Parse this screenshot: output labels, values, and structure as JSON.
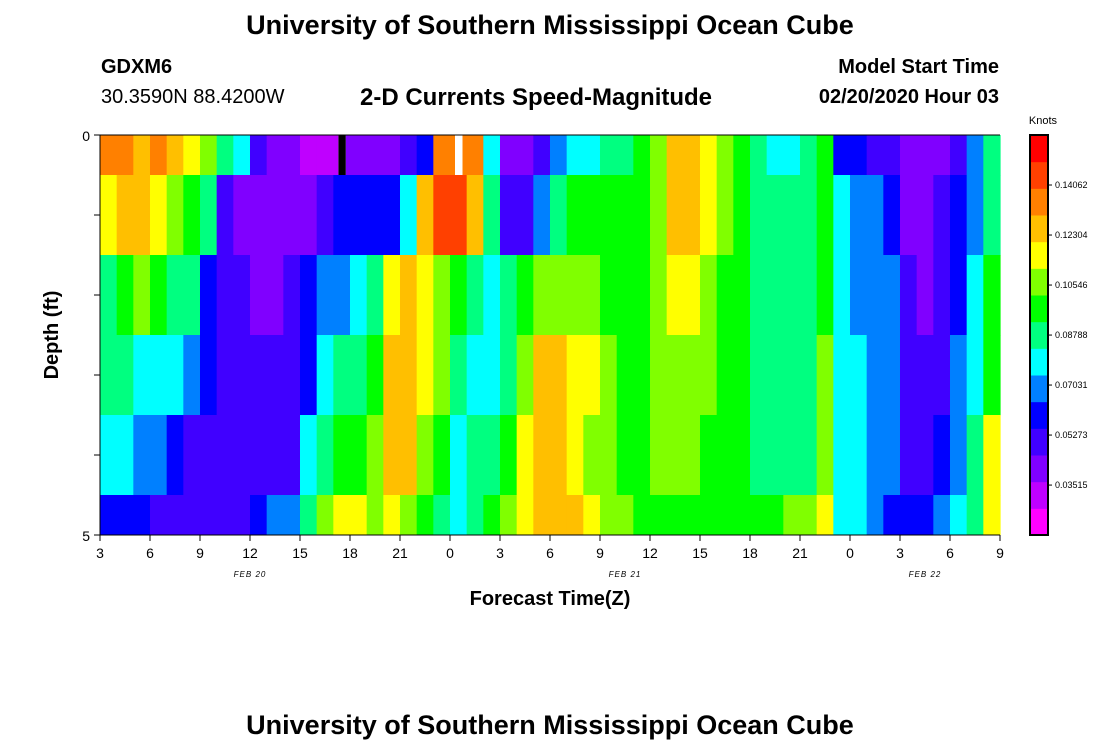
{
  "header": {
    "title": "University of Southern Mississippi Ocean Cube",
    "station_id": "GDXM6",
    "station_coords": "30.3590N 88.4200W",
    "subtitle": "2-D Currents Speed-Magnitude",
    "model_label": "Model Start Time",
    "model_time": "02/20/2020 Hour 03"
  },
  "footer": {
    "title": "University of Southern Mississippi Ocean Cube"
  },
  "colors": {
    "palette": [
      "#ff00ff",
      "#bf00ff",
      "#8000ff",
      "#4000ff",
      "#0000ff",
      "#0080ff",
      "#00ffff",
      "#00ff80",
      "#00ff00",
      "#80ff00",
      "#ffff00",
      "#ffbf00",
      "#ff8000",
      "#ff4000",
      "#ff0000"
    ],
    "missing_black": "#000000",
    "missing_white": "#ffffff"
  },
  "chart_data": {
    "type": "heatmap",
    "xlabel": "Forecast Time(Z)",
    "ylabel": "Depth (ft)",
    "colorbar_label": "Knots",
    "y_tick_labels": [
      "0",
      "5"
    ],
    "ylim": [
      0,
      5
    ],
    "x_tick_labels": [
      "3",
      "6",
      "9",
      "12",
      "15",
      "18",
      "21",
      "0",
      "3",
      "6",
      "9",
      "12",
      "15",
      "18",
      "21",
      "0",
      "3",
      "6",
      "9"
    ],
    "date_labels": [
      {
        "label": "FEB 20",
        "hour_index": 9
      },
      {
        "label": "FEB 21",
        "hour_index": 31.5
      },
      {
        "label": "FEB 22",
        "hour_index": 49.5
      }
    ],
    "colorbar_ticks": [
      "0.14062",
      "0.12304",
      "0.10546",
      "0.08788",
      "0.07031",
      "0.05273",
      "0.03515"
    ],
    "colorbar_range": [
      0.0176,
      0.1582
    ],
    "hours": 54,
    "depth_rows": [
      {
        "depth_range": [
          0,
          0.5
        ],
        "values": [
          0.132,
          0.132,
          0.128,
          0.132,
          0.128,
          0.12,
          0.105,
          0.09,
          0.075,
          0.05,
          0.04,
          0.038,
          0.035,
          0.035,
          null,
          0.04,
          0.045,
          0.045,
          0.05,
          0.06,
          0.135,
          null,
          0.135,
          0.075,
          0.045,
          0.045,
          0.05,
          0.065,
          0.075,
          0.08,
          0.085,
          0.09,
          0.1,
          0.11,
          0.125,
          0.13,
          0.12,
          0.11,
          0.1,
          0.09,
          0.082,
          0.08,
          0.085,
          0.095,
          0.06,
          0.06,
          0.055,
          0.05,
          0.04,
          0.04,
          0.045,
          0.055,
          0.07,
          0.085
        ]
      },
      {
        "depth_range": [
          0.5,
          1.5
        ],
        "values": [
          0.115,
          0.125,
          0.122,
          0.118,
          0.11,
          0.095,
          0.085,
          0.05,
          0.042,
          0.04,
          0.04,
          0.04,
          0.045,
          0.055,
          0.06,
          0.06,
          0.06,
          0.06,
          0.08,
          0.13,
          0.14,
          0.14,
          0.125,
          0.085,
          0.05,
          0.05,
          0.07,
          0.09,
          0.095,
          0.1,
          0.1,
          0.095,
          0.1,
          0.105,
          0.125,
          0.125,
          0.115,
          0.105,
          0.095,
          0.088,
          0.085,
          0.085,
          0.09,
          0.1,
          0.075,
          0.07,
          0.065,
          0.06,
          0.045,
          0.045,
          0.05,
          0.06,
          0.07,
          0.085
        ]
      },
      {
        "depth_range": [
          1.5,
          2.5
        ],
        "values": [
          0.09,
          0.1,
          0.105,
          0.1,
          0.09,
          0.085,
          0.06,
          0.055,
          0.05,
          0.045,
          0.045,
          0.05,
          0.06,
          0.07,
          0.07,
          0.075,
          0.09,
          0.12,
          0.125,
          0.12,
          0.11,
          0.1,
          0.09,
          0.075,
          0.085,
          0.095,
          0.105,
          0.11,
          0.11,
          0.105,
          0.1,
          0.095,
          0.1,
          0.11,
          0.12,
          0.12,
          0.11,
          0.1,
          0.095,
          0.09,
          0.087,
          0.087,
          0.09,
          0.095,
          0.075,
          0.072,
          0.07,
          0.065,
          0.05,
          0.045,
          0.05,
          0.06,
          0.075,
          0.095
        ]
      },
      {
        "depth_range": [
          2.5,
          3.5
        ],
        "values": [
          0.09,
          0.085,
          0.08,
          0.075,
          0.075,
          0.07,
          0.06,
          0.055,
          0.05,
          0.05,
          0.05,
          0.055,
          0.06,
          0.08,
          0.085,
          0.09,
          0.1,
          0.125,
          0.125,
          0.12,
          0.11,
          0.09,
          0.08,
          0.075,
          0.09,
          0.11,
          0.125,
          0.125,
          0.12,
          0.115,
          0.105,
          0.1,
          0.1,
          0.105,
          0.11,
          0.11,
          0.105,
          0.1,
          0.095,
          0.09,
          0.088,
          0.088,
          0.09,
          0.11,
          0.08,
          0.075,
          0.072,
          0.068,
          0.055,
          0.05,
          0.055,
          0.065,
          0.08,
          0.1
        ]
      },
      {
        "depth_range": [
          3.5,
          4.5
        ],
        "values": [
          0.075,
          0.075,
          0.07,
          0.065,
          0.06,
          0.055,
          0.05,
          0.05,
          0.05,
          0.05,
          0.05,
          0.05,
          0.08,
          0.09,
          0.095,
          0.095,
          0.105,
          0.125,
          0.125,
          0.11,
          0.1,
          0.08,
          0.085,
          0.09,
          0.1,
          0.115,
          0.125,
          0.125,
          0.12,
          0.11,
          0.105,
          0.1,
          0.1,
          0.105,
          0.105,
          0.105,
          0.1,
          0.097,
          0.093,
          0.09,
          0.088,
          0.09,
          0.092,
          0.11,
          0.08,
          0.075,
          0.07,
          0.065,
          0.055,
          0.055,
          0.06,
          0.07,
          0.085,
          0.115
        ]
      },
      {
        "depth_range": [
          4.5,
          5
        ],
        "values": [
          0.06,
          0.06,
          0.06,
          0.055,
          0.055,
          0.05,
          0.05,
          0.05,
          0.055,
          0.06,
          0.065,
          0.07,
          0.085,
          0.11,
          0.12,
          0.115,
          0.11,
          0.12,
          0.11,
          0.1,
          0.09,
          0.08,
          0.085,
          0.095,
          0.105,
          0.12,
          0.13,
          0.13,
          0.125,
          0.12,
          0.11,
          0.105,
          0.1,
          0.1,
          0.1,
          0.1,
          0.1,
          0.1,
          0.1,
          0.1,
          0.1,
          0.105,
          0.11,
          0.12,
          0.08,
          0.075,
          0.065,
          0.06,
          0.06,
          0.06,
          0.065,
          0.075,
          0.09,
          0.12
        ]
      }
    ],
    "missing_cells": [
      {
        "row": 0,
        "hour": 14,
        "color": "black"
      },
      {
        "row": 0,
        "hour": 21,
        "color": "white"
      }
    ]
  }
}
